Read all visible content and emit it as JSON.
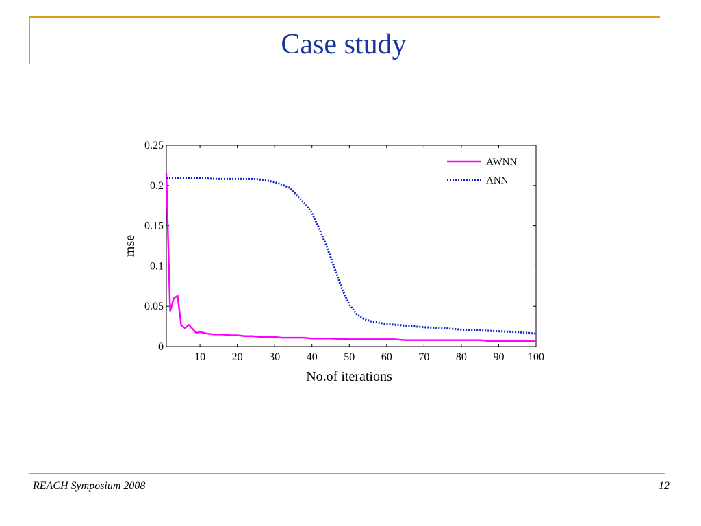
{
  "slide": {
    "title": "Case study",
    "footer_left": "REACH Symposium 2008",
    "page_number": "12"
  },
  "colors": {
    "accent_line": "#d4a017",
    "title": "#17379b",
    "awnn": "#ff00ff",
    "ann": "#0a1fcc"
  },
  "chart_data": {
    "type": "line",
    "title": "",
    "xlabel": "No.of iterations",
    "ylabel": "mse",
    "xlim": [
      1,
      100
    ],
    "ylim": [
      0,
      0.25
    ],
    "xticks": [
      10,
      20,
      30,
      40,
      50,
      60,
      70,
      80,
      90,
      100
    ],
    "yticks": [
      0,
      0.05,
      0.1,
      0.15,
      0.2,
      0.25
    ],
    "grid": false,
    "legend": "top-right",
    "series": [
      {
        "name": "AWNN",
        "style": "solid",
        "x": [
          1,
          2,
          3,
          4,
          5,
          6,
          7,
          8,
          9,
          10,
          12,
          14,
          16,
          18,
          20,
          22,
          24,
          26,
          28,
          30,
          32,
          35,
          38,
          40,
          45,
          50,
          55,
          60,
          62,
          65,
          70,
          75,
          80,
          85,
          87,
          90,
          95,
          100
        ],
        "y": [
          0.215,
          0.044,
          0.06,
          0.063,
          0.026,
          0.023,
          0.027,
          0.022,
          0.017,
          0.018,
          0.016,
          0.015,
          0.015,
          0.014,
          0.014,
          0.013,
          0.013,
          0.012,
          0.012,
          0.012,
          0.011,
          0.011,
          0.011,
          0.01,
          0.01,
          0.009,
          0.009,
          0.009,
          0.009,
          0.008,
          0.008,
          0.008,
          0.008,
          0.008,
          0.007,
          0.007,
          0.007,
          0.007
        ]
      },
      {
        "name": "ANN",
        "style": "dotted",
        "x": [
          1,
          5,
          10,
          15,
          20,
          25,
          28,
          30,
          32,
          34,
          36,
          38,
          40,
          42,
          44,
          46,
          48,
          50,
          52,
          54,
          56,
          60,
          65,
          70,
          75,
          80,
          85,
          90,
          95,
          100
        ],
        "y": [
          0.209,
          0.209,
          0.209,
          0.208,
          0.208,
          0.208,
          0.206,
          0.204,
          0.201,
          0.197,
          0.188,
          0.178,
          0.166,
          0.146,
          0.124,
          0.098,
          0.072,
          0.052,
          0.04,
          0.034,
          0.031,
          0.028,
          0.026,
          0.024,
          0.023,
          0.021,
          0.02,
          0.019,
          0.018,
          0.016
        ]
      }
    ]
  }
}
